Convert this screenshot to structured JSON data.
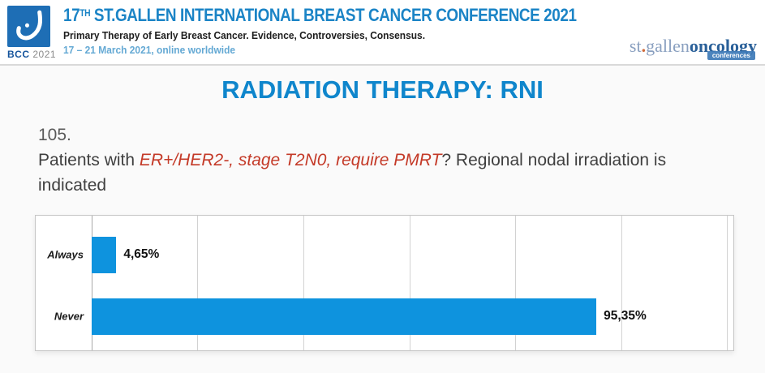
{
  "header": {
    "logo": {
      "badge_name": "BCC",
      "badge_year": "2021"
    },
    "title_num": "17",
    "title_sup": "TH",
    "title_rest": " ST.GALLEN INTERNATIONAL BREAST CANCER CONFERENCE 2021",
    "subtitle": "Primary Therapy of Early Breast Cancer. Evidence, Controversies, Consensus.",
    "dates": "17 – 21 March 2021, online worldwide",
    "org": {
      "part1": "st",
      "dot": ".",
      "part2": "gallen",
      "part3": "oncology",
      "badge": "conferences"
    }
  },
  "slide": {
    "title": "RADIATION THERAPY: RNI",
    "question_number": "105.",
    "question_prefix": "Patients with ",
    "question_highlight": "ER+/HER2-, stage T2N0, require PMRT",
    "question_suffix": "? Regional nodal irradiation is indicated"
  },
  "chart_data": {
    "type": "bar",
    "orientation": "horizontal",
    "categories": [
      "Always",
      "Never"
    ],
    "values": [
      4.65,
      95.35
    ],
    "value_labels": [
      "4,65%",
      "95,35%"
    ],
    "xlim": [
      0,
      120
    ],
    "gridline_step": 20,
    "grid": true,
    "legend": false,
    "bar_color": "#0e93de"
  },
  "colors": {
    "header_title": "#1b84c6",
    "dates_blue": "#64a9d4",
    "logo_square": "#1e6eb5",
    "slide_title": "#0f86cc",
    "question_text": "#3f3f3f",
    "question_highlight": "#c43a28",
    "bar_blue": "#0e93de"
  }
}
